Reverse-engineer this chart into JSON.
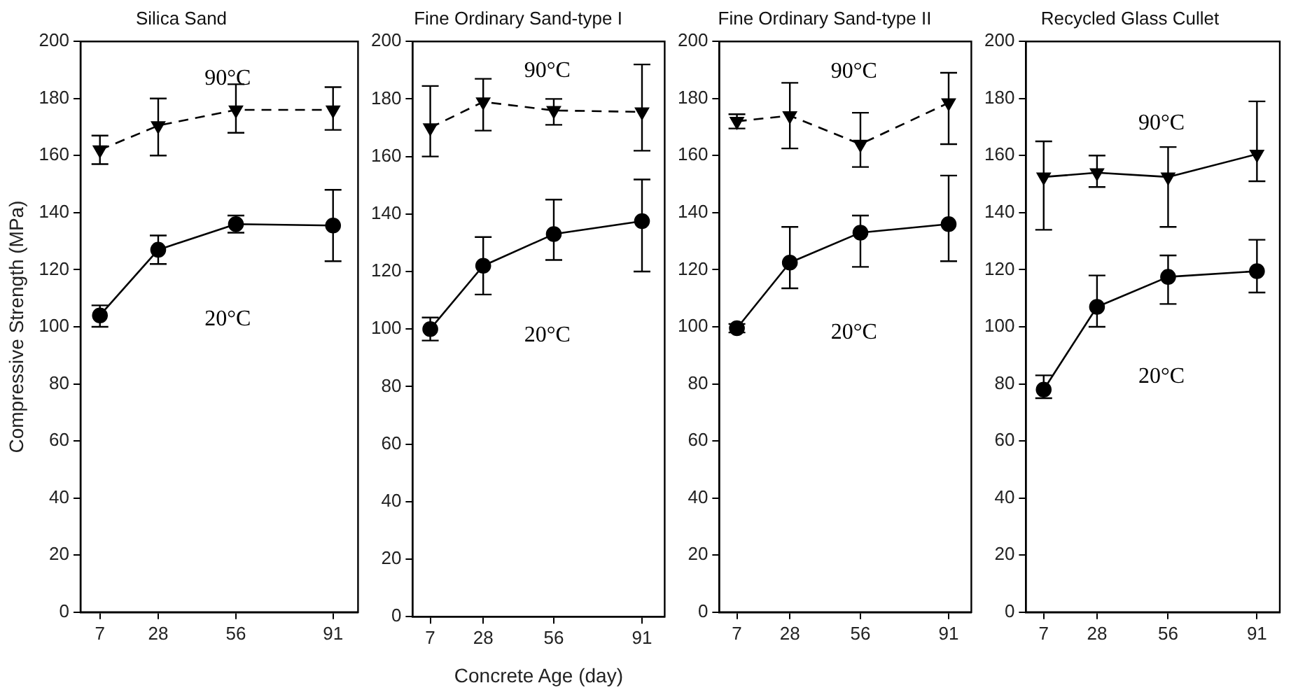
{
  "chart_data": [
    {
      "type": "line",
      "title": "Silica Sand",
      "ylabel": "Compressive Strength (MPa)",
      "x": [
        7,
        28,
        56,
        91
      ],
      "xlim": [
        0,
        100
      ],
      "xticks": [
        7,
        28,
        56,
        91
      ],
      "ylim": [
        0,
        200
      ],
      "yticks": [
        0,
        20,
        40,
        60,
        80,
        100,
        120,
        140,
        160,
        180,
        200
      ],
      "grid": false,
      "legend": false,
      "series": [
        {
          "name": "20°C",
          "color": "#000000",
          "marker": "circle",
          "line_style": "solid",
          "values": [
            104,
            127,
            136,
            135.5
          ],
          "errors": [
            [
              100,
              107.5
            ],
            [
              122,
              132
            ],
            [
              133,
              139
            ],
            [
              123,
              148
            ]
          ]
        },
        {
          "name": "90°C",
          "color": "#000000",
          "marker": "triangle",
          "line_style": "dashed",
          "values": [
            162,
            170.5,
            176,
            176
          ],
          "errors": [
            [
              157,
              167
            ],
            [
              160,
              180
            ],
            [
              168,
              185
            ],
            [
              169,
              184
            ]
          ]
        }
      ]
    },
    {
      "type": "line",
      "title": "Fine Ordinary Sand-type I",
      "xlabel": "Concrete Age (day)",
      "x": [
        7,
        28,
        56,
        91
      ],
      "xlim": [
        0,
        100
      ],
      "xticks": [
        7,
        28,
        56,
        91
      ],
      "ylim": [
        0,
        200
      ],
      "yticks": [
        0,
        20,
        40,
        60,
        80,
        100,
        120,
        140,
        160,
        180,
        200
      ],
      "grid": false,
      "legend": false,
      "series": [
        {
          "name": "20°C",
          "color": "#000000",
          "marker": "circle",
          "line_style": "solid",
          "values": [
            100,
            122,
            133,
            137.5
          ],
          "errors": [
            [
              96,
              104
            ],
            [
              112,
              132
            ],
            [
              124,
              145
            ],
            [
              120,
              152
            ]
          ]
        },
        {
          "name": "90°C",
          "color": "#000000",
          "marker": "triangle",
          "line_style": "dashed",
          "values": [
            170,
            179,
            176,
            175.5
          ],
          "errors": [
            [
              160,
              184.5
            ],
            [
              169,
              187
            ],
            [
              171,
              180
            ],
            [
              162,
              192
            ]
          ]
        }
      ]
    },
    {
      "type": "line",
      "title": "Fine Ordinary Sand-type II",
      "x": [
        7,
        28,
        56,
        91
      ],
      "xlim": [
        0,
        100
      ],
      "xticks": [
        7,
        28,
        56,
        91
      ],
      "ylim": [
        0,
        200
      ],
      "yticks": [
        0,
        20,
        40,
        60,
        80,
        100,
        120,
        140,
        160,
        180,
        200
      ],
      "grid": false,
      "legend": false,
      "series": [
        {
          "name": "20°C",
          "color": "#000000",
          "marker": "circle",
          "line_style": "solid",
          "values": [
            99.5,
            122.5,
            133,
            136
          ],
          "errors": [
            [
              98,
              101
            ],
            [
              113.5,
              135
            ],
            [
              121,
              139
            ],
            [
              123,
              153
            ]
          ]
        },
        {
          "name": "90°C",
          "color": "#000000",
          "marker": "triangle",
          "line_style": "dashed",
          "values": [
            172,
            174,
            164,
            178.5
          ],
          "errors": [
            [
              169.5,
              174.5
            ],
            [
              162.5,
              185.5
            ],
            [
              156,
              175
            ],
            [
              164,
              189
            ]
          ]
        }
      ]
    },
    {
      "type": "line",
      "title": "Recycled Glass Cullet",
      "x": [
        7,
        28,
        56,
        91
      ],
      "xlim": [
        0,
        100
      ],
      "xticks": [
        7,
        28,
        56,
        91
      ],
      "ylim": [
        0,
        200
      ],
      "yticks": [
        0,
        20,
        40,
        60,
        80,
        100,
        120,
        140,
        160,
        180,
        200
      ],
      "grid": false,
      "legend": false,
      "series": [
        {
          "name": "20°C",
          "color": "#000000",
          "marker": "circle",
          "line_style": "solid",
          "values": [
            78,
            107,
            117.5,
            119.5
          ],
          "errors": [
            [
              75,
              83
            ],
            [
              100,
              118
            ],
            [
              108,
              125
            ],
            [
              112,
              130.5
            ]
          ]
        },
        {
          "name": "90°C",
          "color": "#000000",
          "marker": "triangle",
          "line_style": "solid",
          "values": [
            152.5,
            154,
            152.5,
            160.5
          ],
          "errors": [
            [
              134,
              165
            ],
            [
              149,
              160
            ],
            [
              135,
              163
            ],
            [
              151,
              179
            ]
          ]
        }
      ]
    }
  ]
}
